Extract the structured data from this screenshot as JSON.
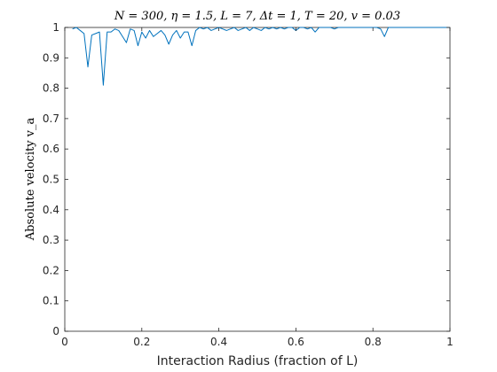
{
  "chart_data": {
    "type": "line",
    "title": "N = 300, η = 1.5, L = 7, Δt = 1, T = 20, v = 0.03",
    "xlabel": "Interaction Radius (fraction of L)",
    "ylabel": "Absolute velocity v_a",
    "xlim": [
      0,
      1
    ],
    "ylim": [
      0,
      1
    ],
    "xticks": [
      "0",
      "0.2",
      "0.4",
      "0.6",
      "0.8",
      "1"
    ],
    "xtick_values": [
      0,
      0.2,
      0.4,
      0.6,
      0.8,
      1
    ],
    "yticks": [
      "0",
      "0.1",
      "0.2",
      "0.3",
      "0.4",
      "0.5",
      "0.6",
      "0.7",
      "0.8",
      "0.9",
      "1"
    ],
    "ytick_values": [
      0,
      0.1,
      0.2,
      0.3,
      0.4,
      0.5,
      0.6,
      0.7,
      0.8,
      0.9,
      1
    ],
    "grid": false,
    "colors": {
      "series": "#0072BD",
      "axes": "#262626"
    },
    "series": [
      {
        "x": [
          0.02,
          0.03,
          0.04,
          0.05,
          0.06,
          0.07,
          0.08,
          0.09,
          0.1,
          0.11,
          0.12,
          0.13,
          0.14,
          0.15,
          0.16,
          0.17,
          0.18,
          0.19,
          0.2,
          0.21,
          0.22,
          0.23,
          0.24,
          0.25,
          0.26,
          0.27,
          0.28,
          0.29,
          0.3,
          0.31,
          0.32,
          0.33,
          0.34,
          0.35,
          0.36,
          0.37,
          0.38,
          0.39,
          0.4,
          0.41,
          0.42,
          0.43,
          0.44,
          0.45,
          0.46,
          0.47,
          0.48,
          0.49,
          0.5,
          0.51,
          0.52,
          0.53,
          0.54,
          0.55,
          0.56,
          0.57,
          0.58,
          0.59,
          0.6,
          0.61,
          0.62,
          0.63,
          0.64,
          0.65,
          0.66,
          0.67,
          0.68,
          0.69,
          0.7,
          0.71,
          0.72,
          0.73,
          0.74,
          0.75,
          0.76,
          0.77,
          0.78,
          0.79,
          0.8,
          0.81,
          0.82,
          0.83,
          0.84,
          0.85,
          0.86,
          0.87,
          0.88,
          0.89,
          0.9,
          0.91,
          0.92,
          0.93,
          0.94,
          0.95,
          0.96,
          0.97,
          0.98,
          0.99,
          1.0
        ],
        "values": [
          0.995,
          1.0,
          0.99,
          0.98,
          0.87,
          0.975,
          0.98,
          0.985,
          0.81,
          0.985,
          0.985,
          0.995,
          0.99,
          0.97,
          0.95,
          0.995,
          0.99,
          0.94,
          0.985,
          0.965,
          0.99,
          0.97,
          0.98,
          0.99,
          0.975,
          0.945,
          0.975,
          0.99,
          0.965,
          0.985,
          0.985,
          0.94,
          0.99,
          1.0,
          0.995,
          1.0,
          0.99,
          0.995,
          1.0,
          0.995,
          0.99,
          0.995,
          1.0,
          0.99,
          0.995,
          1.0,
          0.99,
          1.0,
          0.995,
          0.99,
          1.0,
          0.995,
          1.0,
          0.995,
          1.0,
          0.995,
          1.0,
          1.0,
          0.99,
          1.0,
          1.0,
          0.995,
          1.0,
          0.985,
          1.0,
          1.0,
          1.0,
          1.0,
          0.995,
          1.0,
          1.0,
          1.0,
          1.0,
          1.0,
          1.0,
          1.0,
          1.0,
          1.0,
          1.0,
          1.0,
          0.995,
          0.97,
          1.0,
          1.0,
          1.0,
          1.0,
          1.0,
          1.0,
          1.0,
          1.0,
          1.0,
          1.0,
          1.0,
          1.0,
          1.0,
          1.0,
          1.0,
          1.0,
          1.0
        ]
      }
    ]
  }
}
